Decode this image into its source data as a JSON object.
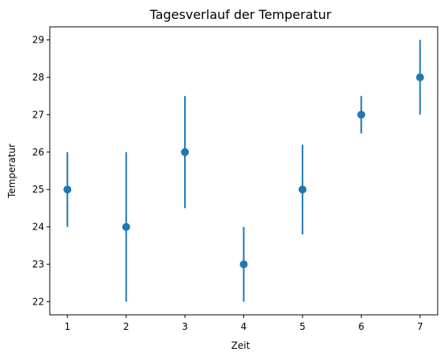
{
  "chart_data": {
    "type": "scatter",
    "title": "Tagesverlauf der Temperatur",
    "xlabel": "Zeit",
    "ylabel": "Temperatur",
    "x": [
      1,
      2,
      3,
      4,
      5,
      6,
      7
    ],
    "y": [
      25,
      24,
      26,
      23,
      25,
      27,
      28
    ],
    "yerr_lower": [
      1,
      2,
      1.5,
      1,
      1.2,
      0.5,
      1
    ],
    "yerr_upper": [
      1,
      2,
      1.5,
      1,
      1.2,
      0.5,
      1
    ],
    "xlim": [
      0.7,
      7.3
    ],
    "ylim": [
      21.65,
      29.35
    ],
    "xticks": [
      "1",
      "2",
      "3",
      "4",
      "5",
      "6",
      "7"
    ],
    "yticks": [
      "22",
      "23",
      "24",
      "25",
      "26",
      "27",
      "28",
      "29"
    ],
    "grid": false,
    "color": "#1f77b4"
  }
}
